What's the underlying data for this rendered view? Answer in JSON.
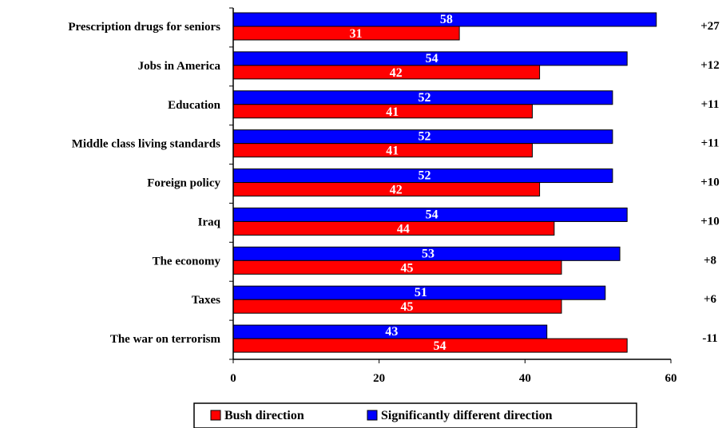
{
  "chart_data": {
    "type": "bar",
    "orientation": "horizontal",
    "categories": [
      "Prescription drugs for seniors",
      "Jobs in America",
      "Education",
      "Middle class living standards",
      "Foreign policy",
      "Iraq",
      "The economy",
      "Taxes",
      "The war on terrorism"
    ],
    "series": [
      {
        "name": "Significantly different direction",
        "color": "#0000ff",
        "values": [
          58,
          54,
          52,
          52,
          52,
          54,
          53,
          51,
          43
        ]
      },
      {
        "name": "Bush direction",
        "color": "#ff0000",
        "values": [
          31,
          42,
          41,
          41,
          42,
          44,
          45,
          45,
          54
        ]
      }
    ],
    "differences": [
      "+27",
      "+12",
      "+11",
      "+11",
      "+10",
      "+10",
      "+8",
      "+6",
      "-11"
    ],
    "xlim": [
      0,
      60
    ],
    "xticks": [
      0,
      20,
      40,
      60
    ],
    "legend": {
      "placement": "bottom",
      "items": [
        "Bush direction",
        "Significantly different direction"
      ]
    },
    "grid": false
  }
}
